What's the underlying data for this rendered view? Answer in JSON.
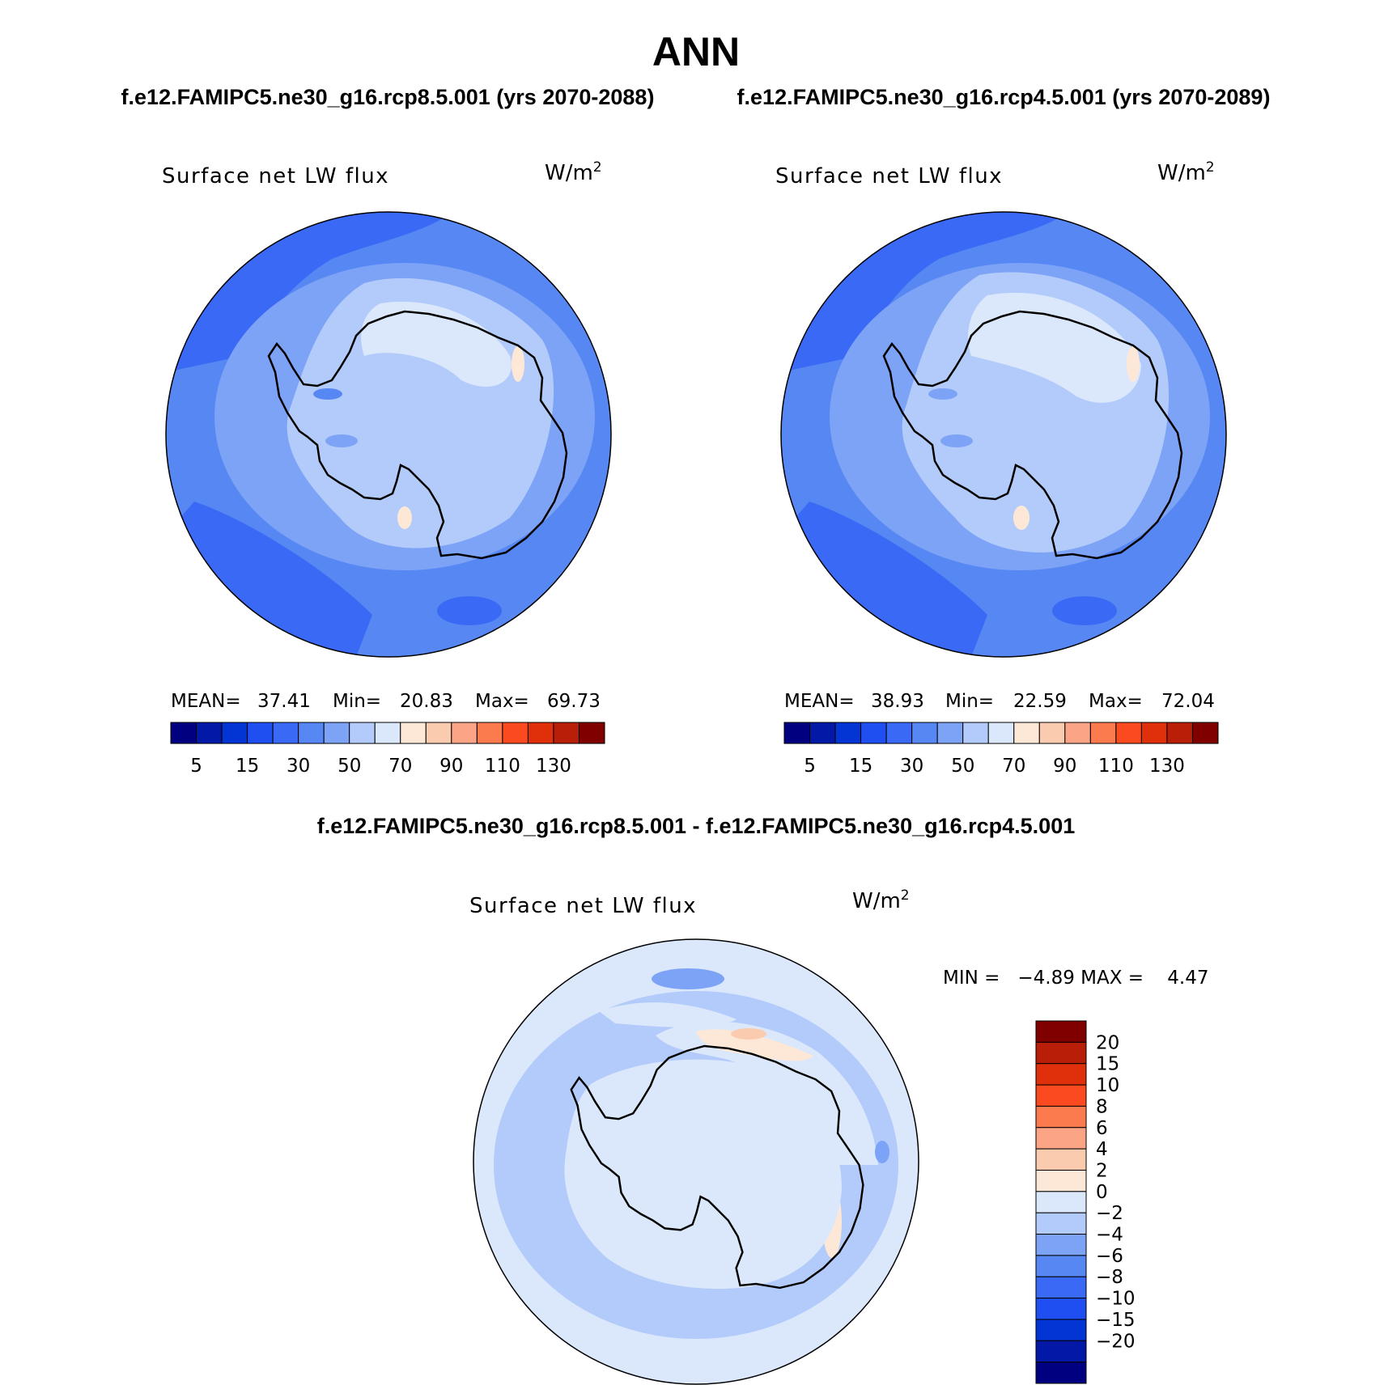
{
  "season": "ANN",
  "panels": [
    {
      "case_title": "f.e12.FAMIPC5.ne30_g16.rcp8.5.001 (yrs 2070-2088)",
      "field": "Surface net LW flux",
      "units_base": "W/m",
      "units_exp": "2",
      "stats": {
        "mean_label": "MEAN=",
        "mean": "37.41",
        "min_label": "Min=",
        "min": "20.83",
        "max_label": "Max=",
        "max": "69.73"
      }
    },
    {
      "case_title": "f.e12.FAMIPC5.ne30_g16.rcp4.5.001 (yrs 2070-2089)",
      "field": "Surface net LW flux",
      "units_base": "W/m",
      "units_exp": "2",
      "stats": {
        "mean_label": "MEAN=",
        "mean": "38.93",
        "min_label": "Min=",
        "min": "22.59",
        "max_label": "Max=",
        "max": "72.04"
      }
    }
  ],
  "diff_panel": {
    "case_title": "f.e12.FAMIPC5.ne30_g16.rcp8.5.001 - f.e12.FAMIPC5.ne30_g16.rcp4.5.001",
    "field": "Surface net LW flux",
    "units_base": "W/m",
    "units_exp": "2",
    "minmax": "MIN =   −4.89 MAX =    4.47"
  },
  "colorbar_abs": {
    "colors": [
      "#000080",
      "#0219a8",
      "#0335d4",
      "#1f4ff0",
      "#3a6af5",
      "#5687f2",
      "#7da3f7",
      "#b3cbfa",
      "#dbe8fc",
      "#fde8d8",
      "#fbcbb0",
      "#fca486",
      "#fb7b4f",
      "#fb4a1f",
      "#e0300b",
      "#b81e08",
      "#800000"
    ],
    "labels": [
      "5",
      "15",
      "30",
      "50",
      "70",
      "90",
      "110",
      "130"
    ]
  },
  "colorbar_diff": {
    "colors": [
      "#000080",
      "#0219a8",
      "#0335d4",
      "#1f4ff0",
      "#3a6af5",
      "#5687f2",
      "#7da3f7",
      "#b3cbfa",
      "#dbe8fc",
      "#fde8d8",
      "#fbcbb0",
      "#fca486",
      "#fb7b4f",
      "#fb4a1f",
      "#e0300b",
      "#b81e08",
      "#800000"
    ],
    "labels": [
      "−20",
      "−15",
      "−10",
      "−8",
      "−6",
      "−4",
      "−2",
      "0",
      "2",
      "4",
      "6",
      "8",
      "10",
      "15",
      "20"
    ]
  }
}
